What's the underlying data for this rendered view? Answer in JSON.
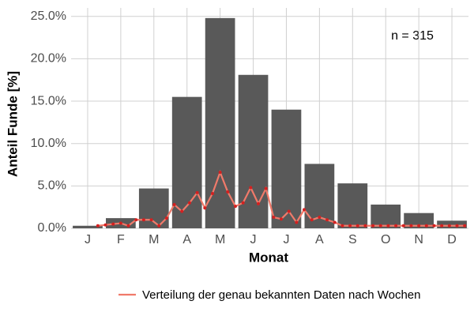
{
  "chart_data": {
    "type": "bar",
    "xlabel": "Monat",
    "ylabel": "Anteil Funde [%]",
    "annotation": "n = 315",
    "categories": [
      "J",
      "F",
      "M",
      "A",
      "M",
      "J",
      "J",
      "A",
      "S",
      "O",
      "N",
      "D"
    ],
    "values": [
      0.3,
      1.2,
      4.7,
      15.5,
      24.8,
      18.1,
      14.0,
      7.6,
      5.3,
      2.8,
      1.8,
      0.9
    ],
    "color": "#595959",
    "ylim": [
      0,
      26
    ],
    "yticks": [
      {
        "value": 0,
        "label": "0.0%"
      },
      {
        "value": 5,
        "label": "5.0%"
      },
      {
        "value": 10,
        "label": "10.0%"
      },
      {
        "value": 15,
        "label": "15.0%"
      },
      {
        "value": 20,
        "label": "20.0%"
      },
      {
        "value": 25,
        "label": "25.0%"
      }
    ],
    "grid": true,
    "legend": "bottom",
    "line": {
      "name": "Verteilung der genau bekannten Daten nach Wochen",
      "color": "#f07a6a",
      "point_color": "#d42020",
      "xlim": [
        0.5,
        52.5
      ],
      "x": [
        4,
        5,
        6,
        7,
        8,
        9,
        10,
        11,
        12,
        13,
        14,
        15,
        16,
        17,
        18,
        19,
        20,
        21,
        22,
        23,
        24,
        25,
        26,
        27,
        28,
        29,
        30,
        31,
        32,
        33,
        34,
        35,
        36,
        37,
        38,
        39,
        40,
        41,
        42,
        43,
        44,
        45,
        46,
        47,
        48,
        49,
        50,
        51,
        52
      ],
      "values": [
        0.3,
        0.4,
        0.5,
        0.6,
        0.3,
        1.0,
        1.0,
        1.0,
        0.3,
        1.2,
        2.8,
        2.0,
        3.0,
        4.2,
        2.4,
        4.1,
        6.6,
        4.3,
        2.6,
        3.0,
        4.8,
        2.9,
        4.7,
        1.3,
        1.1,
        2.0,
        0.7,
        2.2,
        1.0,
        1.3,
        1.0,
        0.7,
        0.3,
        0.3,
        0.3,
        0.3,
        0.3,
        0.3,
        0.3,
        0.3,
        0.3,
        0.3,
        0.3,
        0.3,
        0.3,
        0.3,
        0.3,
        0.3,
        0.3
      ]
    }
  }
}
